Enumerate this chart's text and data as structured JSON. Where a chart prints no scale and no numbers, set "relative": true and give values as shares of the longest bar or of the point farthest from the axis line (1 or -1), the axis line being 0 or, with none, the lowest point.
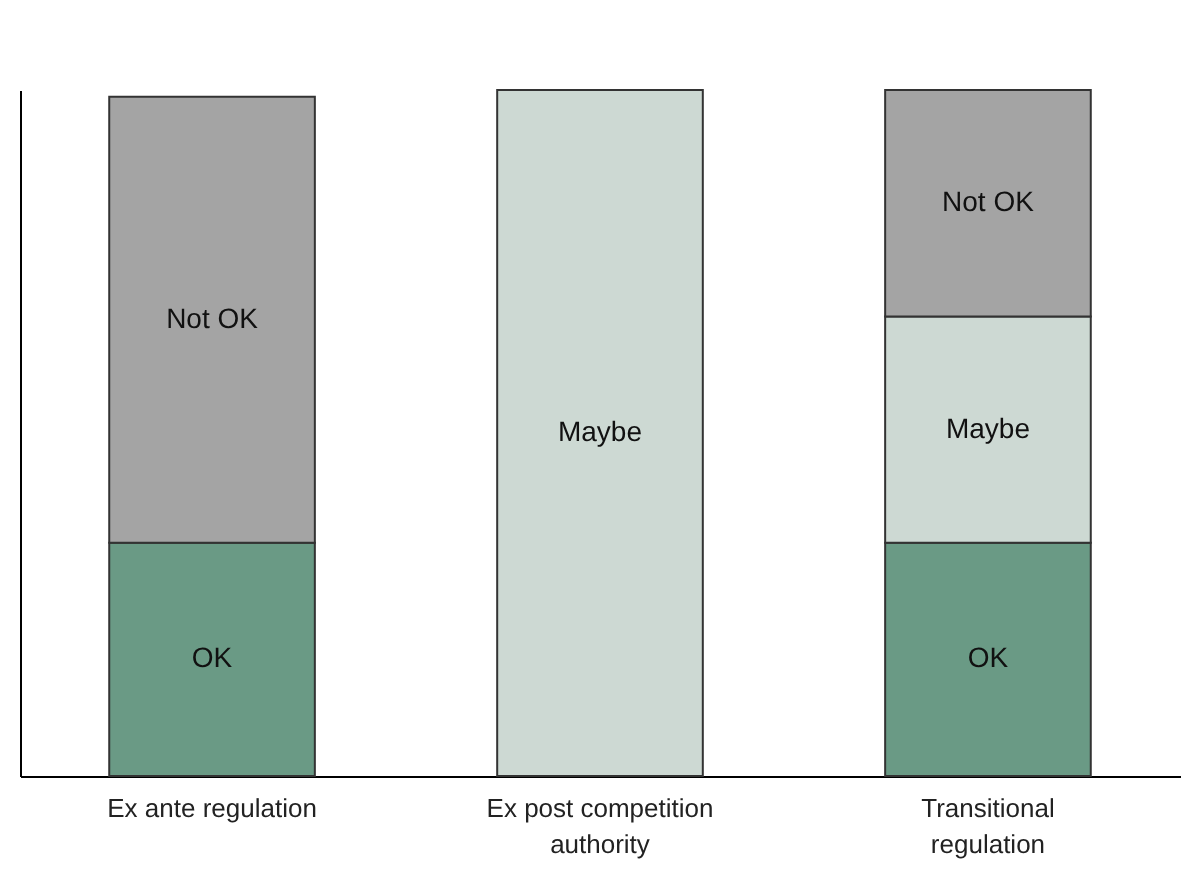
{
  "chart_data": {
    "type": "bar",
    "stacked": true,
    "relative": true,
    "legend": false,
    "categories": [
      "Ex ante regulation",
      "Ex post competition authority",
      "Transitional regulation"
    ],
    "series": [
      {
        "name": "OK",
        "color": "#6a9a85",
        "values": [
          0.34,
          null,
          0.34
        ]
      },
      {
        "name": "Maybe",
        "color": "#cdd9d3",
        "values": [
          null,
          1,
          0.33
        ]
      },
      {
        "name": "Not OK",
        "color": "#a4a4a4",
        "values": [
          0.65,
          null,
          0.33
        ]
      }
    ]
  }
}
